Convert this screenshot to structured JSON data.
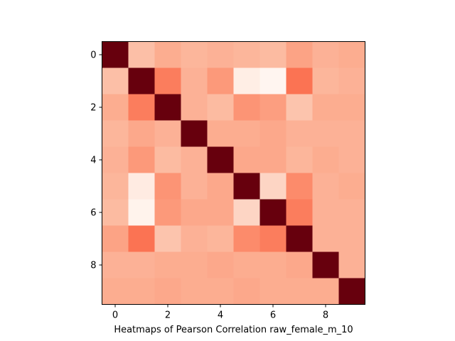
{
  "chart_data": {
    "type": "heatmap",
    "xlabel": "Heatmaps of Pearson Correlation raw_female_m_10",
    "ylabel": "",
    "colormap": "Reds",
    "colorbar": false,
    "grid": false,
    "x_ticks": [
      "0",
      "2",
      "4",
      "6",
      "8"
    ],
    "y_ticks": [
      "0",
      "2",
      "4",
      "6",
      "8"
    ],
    "rows": 10,
    "cols": 10,
    "values": [
      [
        1.0,
        0.48,
        0.52,
        0.5,
        0.51,
        0.5,
        0.49,
        0.54,
        0.51,
        0.52
      ],
      [
        0.48,
        1.0,
        0.62,
        0.51,
        0.56,
        0.35,
        0.32,
        0.64,
        0.5,
        0.51
      ],
      [
        0.52,
        0.62,
        1.0,
        0.51,
        0.49,
        0.57,
        0.55,
        0.47,
        0.52,
        0.52
      ],
      [
        0.5,
        0.53,
        0.51,
        1.0,
        0.52,
        0.52,
        0.53,
        0.51,
        0.51,
        0.51
      ],
      [
        0.51,
        0.56,
        0.49,
        0.51,
        1.0,
        0.53,
        0.53,
        0.5,
        0.52,
        0.51
      ],
      [
        0.5,
        0.36,
        0.57,
        0.51,
        0.53,
        1.0,
        0.43,
        0.59,
        0.51,
        0.52
      ],
      [
        0.49,
        0.33,
        0.56,
        0.53,
        0.53,
        0.43,
        1.0,
        0.62,
        0.51,
        0.51
      ],
      [
        0.54,
        0.64,
        0.47,
        0.51,
        0.5,
        0.59,
        0.62,
        1.0,
        0.51,
        0.51
      ],
      [
        0.51,
        0.51,
        0.52,
        0.52,
        0.53,
        0.52,
        0.52,
        0.53,
        1.0,
        0.51
      ],
      [
        0.52,
        0.52,
        0.53,
        0.52,
        0.52,
        0.53,
        0.52,
        0.52,
        0.52,
        1.0
      ]
    ]
  }
}
